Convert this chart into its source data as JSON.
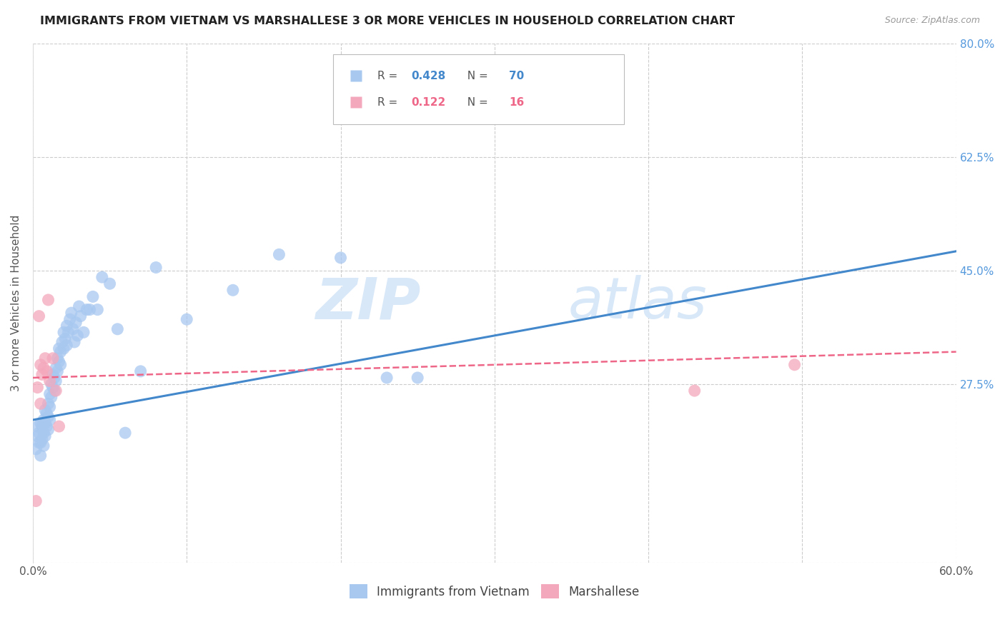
{
  "title": "IMMIGRANTS FROM VIETNAM VS MARSHALLESE 3 OR MORE VEHICLES IN HOUSEHOLD CORRELATION CHART",
  "source_text": "Source: ZipAtlas.com",
  "ylabel": "3 or more Vehicles in Household",
  "xlim": [
    0.0,
    0.6
  ],
  "ylim": [
    0.0,
    0.8
  ],
  "xticks": [
    0.0,
    0.1,
    0.2,
    0.3,
    0.4,
    0.5,
    0.6
  ],
  "xticklabels": [
    "0.0%",
    "",
    "",
    "",
    "",
    "",
    "60.0%"
  ],
  "yticks": [
    0.0,
    0.275,
    0.45,
    0.625,
    0.8
  ],
  "yticklabels": [
    "",
    "27.5%",
    "45.0%",
    "62.5%",
    "80.0%"
  ],
  "grid_color": "#cccccc",
  "background_color": "#ffffff",
  "vietnam_color": "#a8c8f0",
  "marshallese_color": "#f4a8bc",
  "vietnam_line_color": "#4488cc",
  "marshallese_line_color": "#ee6688",
  "legend_r_vietnam": "0.428",
  "legend_n_vietnam": "70",
  "legend_r_marshallese": "0.122",
  "legend_n_marshallese": "16",
  "legend_label_vietnam": "Immigrants from Vietnam",
  "legend_label_marshallese": "Marshallese",
  "watermark_zip": "ZIP",
  "watermark_atlas": "atlas",
  "watermark_color": "#d8e8f8",
  "title_color": "#222222",
  "axis_label_color": "#555555",
  "right_tick_color": "#5599dd",
  "vietnam_line": {
    "x0": 0.0,
    "x1": 0.6,
    "y0": 0.22,
    "y1": 0.48
  },
  "marshallese_line": {
    "x0": 0.0,
    "x1": 0.6,
    "y0": 0.285,
    "y1": 0.325
  },
  "vietnam_scatter_x": [
    0.002,
    0.003,
    0.003,
    0.004,
    0.004,
    0.005,
    0.005,
    0.005,
    0.006,
    0.006,
    0.007,
    0.007,
    0.007,
    0.008,
    0.008,
    0.008,
    0.009,
    0.009,
    0.01,
    0.01,
    0.01,
    0.011,
    0.011,
    0.011,
    0.012,
    0.012,
    0.013,
    0.013,
    0.014,
    0.014,
    0.015,
    0.015,
    0.016,
    0.016,
    0.017,
    0.017,
    0.018,
    0.018,
    0.019,
    0.02,
    0.02,
    0.021,
    0.022,
    0.022,
    0.023,
    0.024,
    0.025,
    0.026,
    0.027,
    0.028,
    0.029,
    0.03,
    0.031,
    0.033,
    0.035,
    0.037,
    0.039,
    0.042,
    0.045,
    0.05,
    0.055,
    0.06,
    0.07,
    0.08,
    0.1,
    0.13,
    0.16,
    0.2,
    0.23,
    0.25
  ],
  "vietnam_scatter_y": [
    0.175,
    0.195,
    0.21,
    0.185,
    0.2,
    0.165,
    0.185,
    0.215,
    0.19,
    0.21,
    0.18,
    0.2,
    0.22,
    0.195,
    0.215,
    0.235,
    0.21,
    0.23,
    0.205,
    0.225,
    0.245,
    0.22,
    0.24,
    0.26,
    0.255,
    0.275,
    0.27,
    0.29,
    0.265,
    0.285,
    0.28,
    0.3,
    0.295,
    0.315,
    0.31,
    0.33,
    0.305,
    0.325,
    0.34,
    0.33,
    0.355,
    0.345,
    0.335,
    0.365,
    0.355,
    0.375,
    0.385,
    0.36,
    0.34,
    0.37,
    0.35,
    0.395,
    0.38,
    0.355,
    0.39,
    0.39,
    0.41,
    0.39,
    0.44,
    0.43,
    0.36,
    0.2,
    0.295,
    0.455,
    0.375,
    0.42,
    0.475,
    0.47,
    0.285,
    0.285
  ],
  "marshallese_scatter_x": [
    0.002,
    0.003,
    0.004,
    0.005,
    0.005,
    0.006,
    0.007,
    0.008,
    0.009,
    0.01,
    0.011,
    0.013,
    0.015,
    0.017,
    0.43,
    0.495
  ],
  "marshallese_scatter_y": [
    0.095,
    0.27,
    0.38,
    0.245,
    0.305,
    0.29,
    0.3,
    0.315,
    0.295,
    0.405,
    0.28,
    0.315,
    0.265,
    0.21,
    0.265,
    0.305
  ]
}
